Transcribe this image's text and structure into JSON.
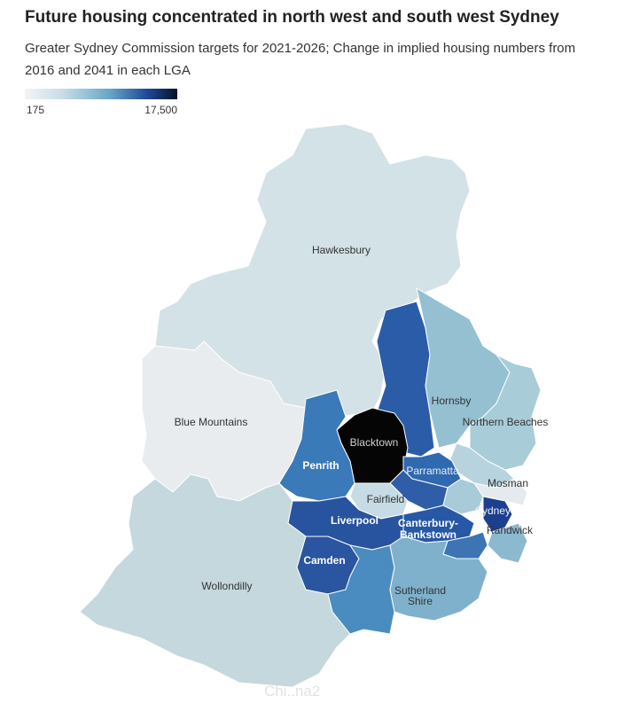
{
  "header": {
    "title": "Future housing concentrated in north west and south west Sydney",
    "subtitle": "Greater Sydney Commission targets for 2021-2026; Change in implied housing numbers from 2016 and 2041 in each LGA"
  },
  "legend": {
    "min_label": "175",
    "max_label": "17,500",
    "min_value": 175,
    "max_value": 17500,
    "colors": [
      "#f2f4f6",
      "#c8dde6",
      "#6aa8c9",
      "#1f4a98",
      "#06122b"
    ]
  },
  "regions": {
    "hawkesbury": {
      "label": "Hawkesbury",
      "fill": "#d3e2e6"
    },
    "blue_mountains": {
      "label": "Blue Mountains",
      "fill": "#e8ecee"
    },
    "wollondilly": {
      "label": "Wollondilly",
      "fill": "#c4d8dd"
    },
    "hornsby": {
      "label": "Hornsby",
      "fill": "#94c0d2"
    },
    "hills": {
      "label": "",
      "fill": "#2a5ca8"
    },
    "northern_beaches": {
      "label": "Northern Beaches",
      "fill": "#a8cdd9"
    },
    "blacktown": {
      "label": "Blacktown",
      "fill": "#050505"
    },
    "penrith": {
      "label": "Penrith",
      "fill": "#3b7ab8"
    },
    "parramatta": {
      "label": "Parramatta",
      "fill": "#2f69b0"
    },
    "mosman": {
      "label": "Mosman",
      "fill": "#e4eaee"
    },
    "fairfield": {
      "label": "Fairfield",
      "fill": "#c6dbe3"
    },
    "sydney": {
      "label": "Sydney",
      "fill": "#1d3f8f"
    },
    "canterbury_bankstown": {
      "label": "Canterbury-Bankstown",
      "fill": "#2758a6"
    },
    "randwick": {
      "label": "Randwick",
      "fill": "#8db9d0"
    },
    "liverpool": {
      "label": "Liverpool",
      "fill": "#28539f"
    },
    "camden": {
      "label": "Camden",
      "fill": "#2a55a0"
    },
    "campbelltown": {
      "label": "",
      "fill": "#4a8cbf"
    },
    "sutherland": {
      "label": "Sutherland Shire",
      "fill": "#7fb1cc"
    }
  },
  "watermark": "Chi..na2"
}
